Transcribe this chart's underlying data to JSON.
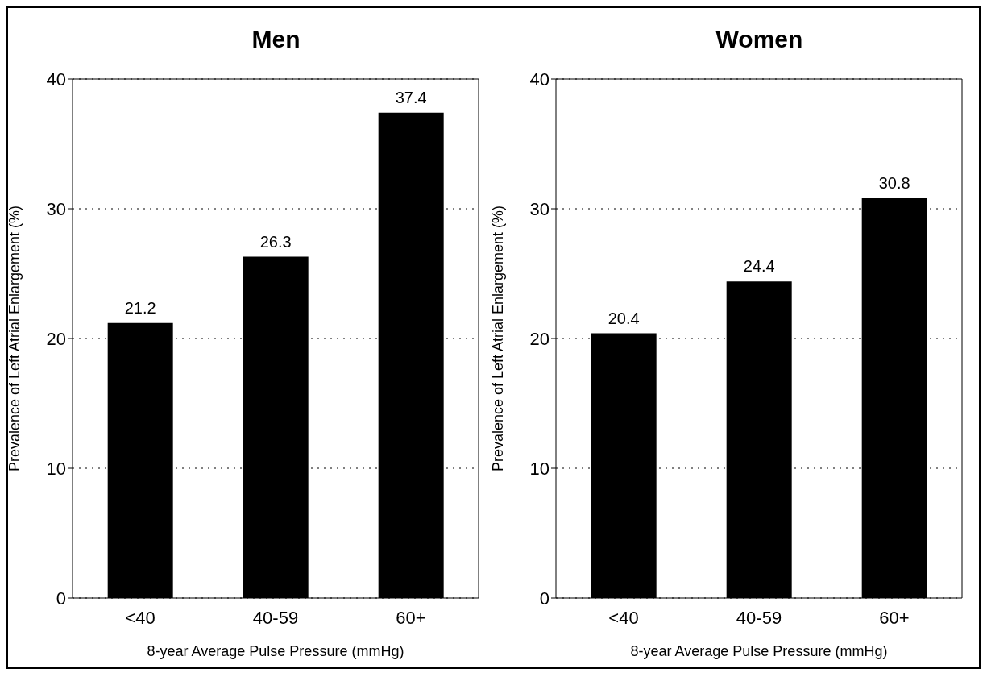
{
  "chart_data": [
    {
      "type": "bar",
      "title": "Men",
      "xlabel": "8-year Average Pulse Pressure (mmHg)",
      "ylabel": "Prevalence of Left Atrial Enlargement (%)",
      "categories": [
        "<40",
        "40-59",
        "60+"
      ],
      "values": [
        21.2,
        26.3,
        37.4
      ],
      "color": "#000000",
      "ylim": [
        0,
        40
      ],
      "yticks": [
        0,
        10,
        20,
        30,
        40
      ],
      "grid": "y",
      "data_labels": true
    },
    {
      "type": "bar",
      "title": "Women",
      "xlabel": "8-year Average Pulse Pressure (mmHg)",
      "ylabel": "Prevalence of Left Atrial Enlargement (%)",
      "categories": [
        "<40",
        "40-59",
        "60+"
      ],
      "values": [
        20.4,
        24.4,
        30.8
      ],
      "color": "#000000",
      "ylim": [
        0,
        40
      ],
      "yticks": [
        0,
        10,
        20,
        30,
        40
      ],
      "grid": "y",
      "data_labels": true
    }
  ]
}
